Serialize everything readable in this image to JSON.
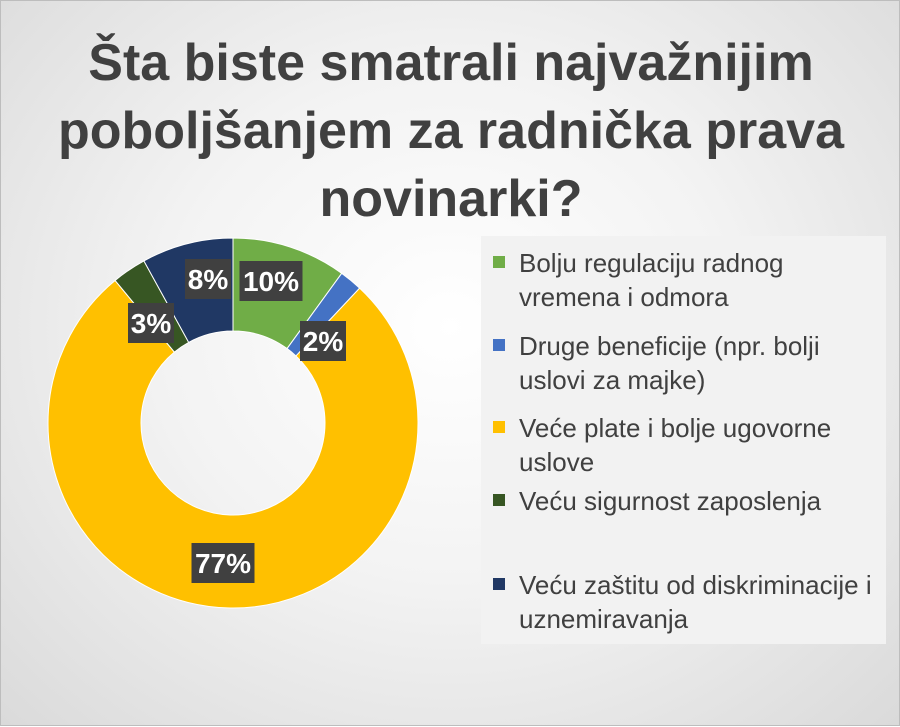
{
  "chart_data": {
    "type": "pie",
    "variant": "donut",
    "title": "Šta biste smatrali najvažnijim poboljšanjem za radnička prava novinarki?",
    "legend_position": "right",
    "categories": [
      "Bolju regulaciju radnog vremena i odmora",
      "Druge beneficije (npr. bolji uslovi za majke)",
      "Veće plate i bolje ugovorne uslove",
      "Veću sigurnost zaposlenja",
      "Veću zaštitu od diskriminacije i uznemiravanja"
    ],
    "values": [
      10,
      2,
      77,
      3,
      8
    ],
    "labels": [
      "10%",
      "2%",
      "77%",
      "3%",
      "8%"
    ],
    "colors": [
      "#70AD47",
      "#4472C4",
      "#FFC000",
      "#375623",
      "#203864"
    ]
  }
}
